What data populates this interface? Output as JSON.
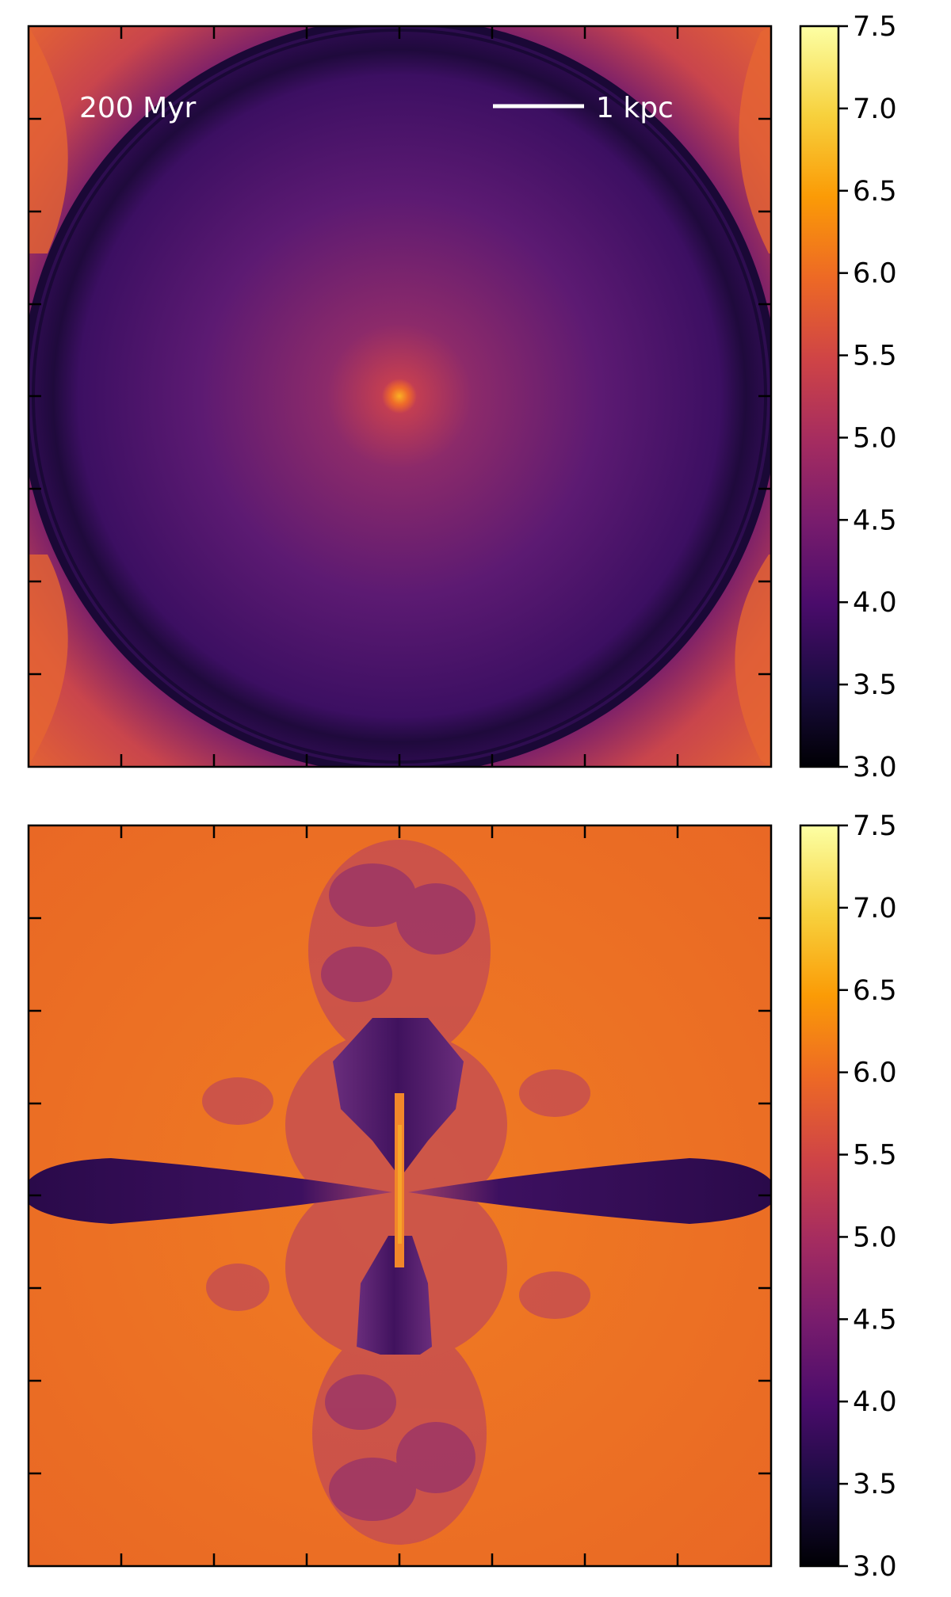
{
  "chart_data": [
    {
      "type": "heatmap",
      "panel": "top",
      "description_visible": "color map of a spherical shell with bright central source",
      "annotation_time": "200 Myr",
      "scale_bar_label": "1 kpc",
      "colorbar": {
        "colormap": "inferno",
        "range": [
          3.0,
          7.5
        ],
        "ticks": [
          "3.0",
          "3.5",
          "4.0",
          "4.5",
          "5.0",
          "5.5",
          "6.0",
          "6.5",
          "7.0",
          "7.5"
        ]
      },
      "x_ticks_count": 7,
      "y_ticks_count": 7,
      "tick_labels_shown": false
    },
    {
      "type": "heatmap",
      "panel": "bottom",
      "description_visible": "color map of bipolar jets with horizontal dark disc",
      "colorbar": {
        "colormap": "inferno",
        "range": [
          3.0,
          7.5
        ],
        "ticks": [
          "3.0",
          "3.5",
          "4.0",
          "4.5",
          "5.0",
          "5.5",
          "6.0",
          "6.5",
          "7.0",
          "7.5"
        ]
      },
      "x_ticks_count": 7,
      "y_ticks_count": 7,
      "tick_labels_shown": false
    }
  ],
  "colors": {
    "cmap_stops": [
      "#000004",
      "#1b0c41",
      "#4a0c6b",
      "#781c6d",
      "#a52c60",
      "#cf4446",
      "#ed6925",
      "#fb9b06",
      "#f7d13d",
      "#fcffa4"
    ],
    "shell_dark": "#1a0a33",
    "disc_interior": "#3e1060",
    "jet_cavity": "#4a1a6e",
    "hot_gas": "#ec6a28",
    "core": "#f59b24"
  }
}
